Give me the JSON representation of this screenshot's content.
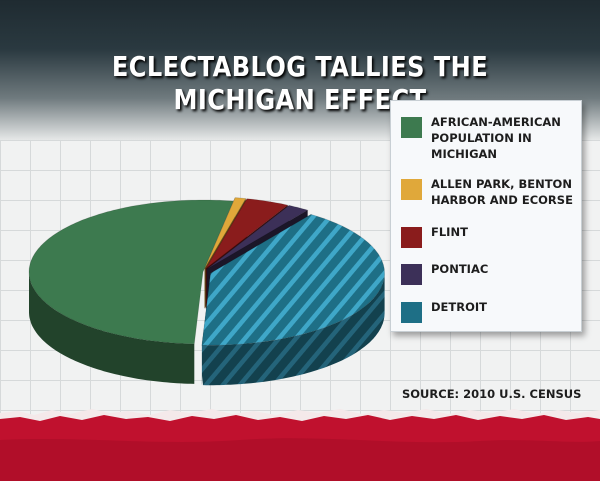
{
  "title": "ECLECTABLOG TALLIES THE MICHIGAN EFFECT",
  "source": "SOURCE: 2010 U.S. CENSUS",
  "chart_data": {
    "type": "pie",
    "title": "ECLECTABLOG TALLIES THE MICHIGAN EFFECT",
    "style": "3d-exploded",
    "legend_position": "right",
    "categories": [
      "AFRICAN-AMERICAN POPULATION IN MICHIGAN",
      "ALLEN PARK, BENTON HARBOR AND ECORSE",
      "FLINT",
      "PONTIAC",
      "DETROIT"
    ],
    "values": [
      52.0,
      1.0,
      4.0,
      2.0,
      41.0
    ],
    "colors": [
      "#3d7a4f",
      "#e0a83a",
      "#8a1c1c",
      "#3c3058",
      "#1e6f86"
    ],
    "hatched": [
      false,
      false,
      false,
      false,
      true
    ]
  }
}
